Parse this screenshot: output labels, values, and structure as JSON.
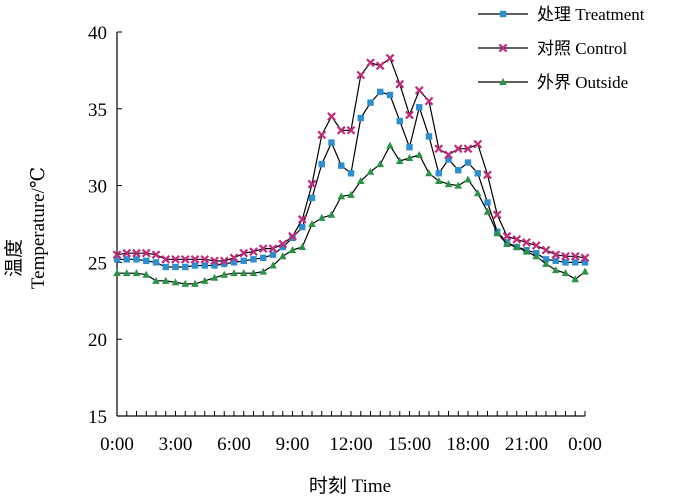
{
  "chart_data": {
    "type": "line",
    "title": "",
    "xlabel": "时刻  Time",
    "ylabel_cn": "温度",
    "ylabel_en": "Temperature/℃",
    "ylim": [
      15,
      40
    ],
    "yticks": [
      15,
      20,
      25,
      30,
      35,
      40
    ],
    "xlim": [
      0,
      24
    ],
    "xticks": [
      0,
      3,
      6,
      9,
      12,
      15,
      18,
      21,
      24
    ],
    "xtick_labels": [
      "0:00",
      "3:00",
      "6:00",
      "9:00",
      "12:00",
      "15:00",
      "18:00",
      "21:00",
      "0:00"
    ],
    "grid": false,
    "legend_position": "top-right",
    "x": [
      0,
      0.5,
      1,
      1.5,
      2,
      2.5,
      3,
      3.5,
      4,
      4.5,
      5,
      5.5,
      6,
      6.5,
      7,
      7.5,
      8,
      8.5,
      9,
      9.5,
      10,
      10.5,
      11,
      11.5,
      12,
      12.5,
      13,
      13.5,
      14,
      14.5,
      15,
      15.5,
      16,
      16.5,
      17,
      17.5,
      18,
      18.5,
      19,
      19.5,
      20,
      20.5,
      21,
      21.5,
      22,
      22.5,
      23,
      23.5,
      24
    ],
    "series": [
      {
        "name": "处理  Treatment",
        "color": "#2e8fd0",
        "marker": "square",
        "values": [
          25.2,
          25.2,
          25.2,
          25.1,
          25.0,
          24.7,
          24.7,
          24.7,
          24.8,
          24.8,
          24.8,
          24.9,
          25.0,
          25.1,
          25.2,
          25.3,
          25.5,
          26.0,
          26.6,
          27.3,
          29.2,
          31.4,
          32.8,
          31.3,
          30.8,
          34.4,
          35.4,
          36.1,
          35.9,
          34.2,
          32.5,
          35.1,
          33.2,
          30.8,
          31.7,
          31.0,
          31.5,
          30.8,
          28.9,
          27.0,
          26.3,
          26.0,
          25.8,
          25.6,
          25.2,
          25.1,
          25.0,
          25.0,
          25.0
        ]
      },
      {
        "name": "对照  Control",
        "color": "#c2297a",
        "marker": "x",
        "values": [
          25.5,
          25.6,
          25.6,
          25.6,
          25.5,
          25.2,
          25.2,
          25.2,
          25.2,
          25.2,
          25.1,
          25.1,
          25.3,
          25.6,
          25.7,
          25.9,
          25.9,
          26.2,
          26.7,
          27.8,
          30.1,
          33.3,
          34.5,
          33.6,
          33.6,
          37.2,
          38.0,
          37.8,
          38.3,
          36.6,
          34.6,
          36.2,
          35.5,
          32.4,
          32.0,
          32.4,
          32.4,
          32.7,
          30.7,
          28.1,
          26.7,
          26.5,
          26.3,
          26.1,
          25.8,
          25.5,
          25.4,
          25.4,
          25.3
        ]
      },
      {
        "name": "外界  Outside",
        "color": "#2a9446",
        "marker": "triangle",
        "values": [
          24.3,
          24.3,
          24.3,
          24.2,
          23.8,
          23.8,
          23.7,
          23.6,
          23.6,
          23.8,
          24.0,
          24.2,
          24.3,
          24.3,
          24.3,
          24.4,
          24.8,
          25.4,
          25.8,
          26.0,
          27.5,
          27.9,
          28.1,
          29.3,
          29.4,
          30.3,
          30.9,
          31.4,
          32.6,
          31.6,
          31.8,
          32.0,
          30.8,
          30.3,
          30.1,
          30.0,
          30.4,
          29.5,
          28.3,
          26.9,
          26.2,
          26.0,
          25.7,
          25.4,
          24.9,
          24.5,
          24.3,
          23.9,
          24.4
        ]
      }
    ]
  }
}
